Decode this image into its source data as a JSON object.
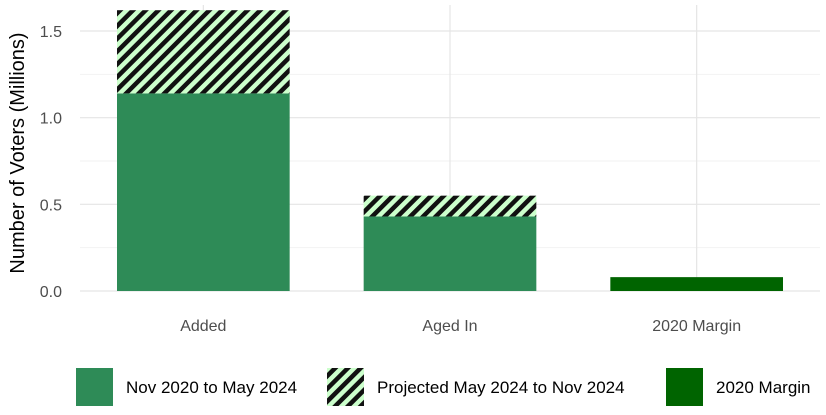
{
  "chart_data": {
    "type": "bar",
    "stacked": true,
    "ylabel": "Number of Voters (Millions)",
    "xlabel": "",
    "title": "",
    "categories": [
      "Added",
      "Aged In",
      "2020 Margin"
    ],
    "ylim": [
      0,
      1.65
    ],
    "yticks": [
      "0.0",
      "0.5",
      "1.0",
      "1.5"
    ],
    "grid": true,
    "legend_position": "bottom",
    "series": [
      {
        "name": "Nov 2020 to May 2024",
        "values": [
          1.14,
          0.43,
          0
        ],
        "color": "#2e8b57",
        "pattern": "solid"
      },
      {
        "name": "Projected May 2024 to Nov 2024",
        "values": [
          0.48,
          0.12,
          0
        ],
        "color": "#2e8b57",
        "pattern": "diagonal-hatch"
      },
      {
        "name": "2020 Margin",
        "values": [
          0,
          0,
          0.08
        ],
        "color": "#006400",
        "pattern": "solid"
      }
    ]
  }
}
